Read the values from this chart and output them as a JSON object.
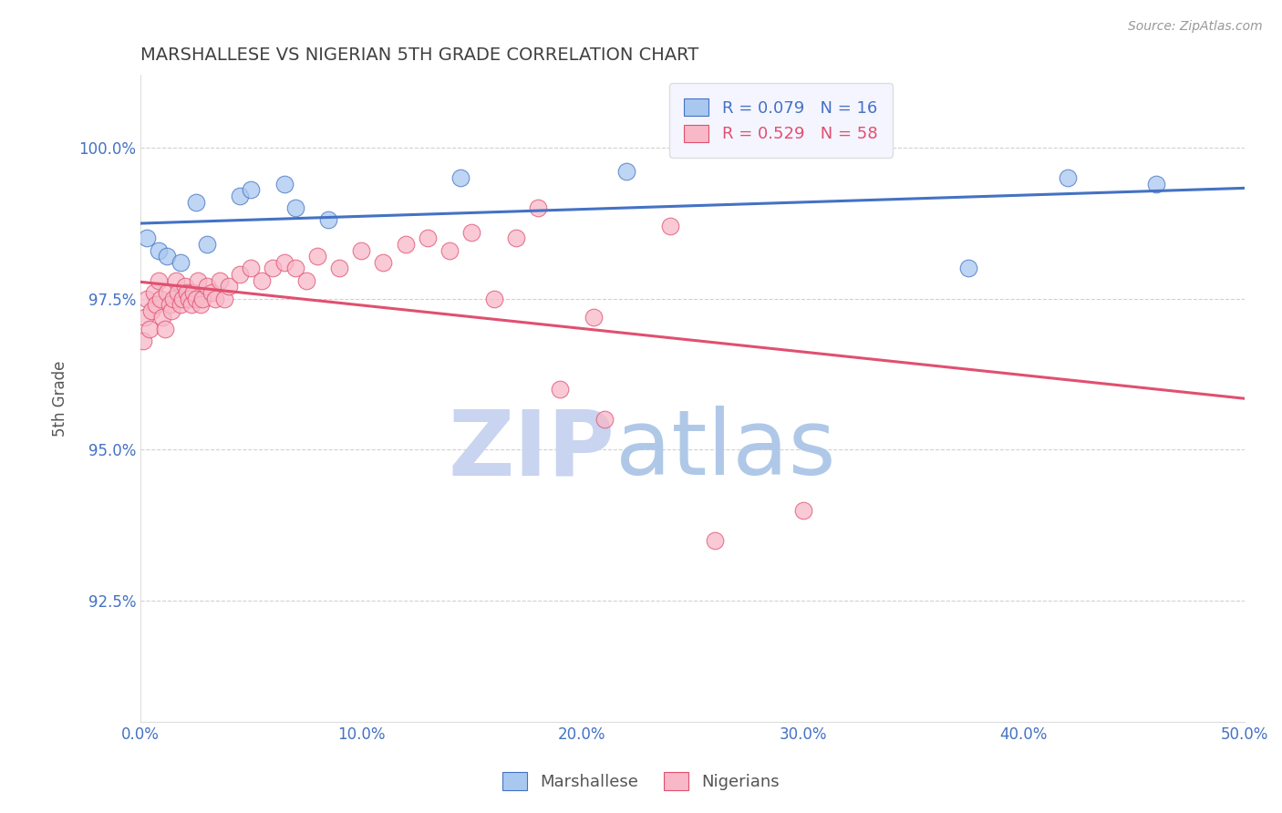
{
  "title": "MARSHALLESE VS NIGERIAN 5TH GRADE CORRELATION CHART",
  "source_text": "Source: ZipAtlas.com",
  "ylabel": "5th Grade",
  "xlim": [
    0.0,
    50.0
  ],
  "ylim": [
    90.5,
    101.2
  ],
  "yticks": [
    92.5,
    95.0,
    97.5,
    100.0
  ],
  "ytick_labels": [
    "92.5%",
    "95.0%",
    "97.5%",
    "100.0%"
  ],
  "xticks": [
    0.0,
    10.0,
    20.0,
    30.0,
    40.0,
    50.0
  ],
  "xtick_labels": [
    "0.0%",
    "10.0%",
    "20.0%",
    "30.0%",
    "40.0%",
    "50.0%"
  ],
  "marshallese_x": [
    0.3,
    0.8,
    1.2,
    1.8,
    2.5,
    3.0,
    4.5,
    5.0,
    6.5,
    7.0,
    8.5,
    14.5,
    22.0,
    37.5,
    42.0,
    46.0
  ],
  "marshallese_y": [
    98.5,
    98.3,
    98.2,
    98.1,
    99.1,
    98.4,
    99.2,
    99.3,
    99.4,
    99.0,
    98.8,
    99.5,
    99.6,
    98.0,
    99.5,
    99.4
  ],
  "nigerian_x": [
    0.1,
    0.2,
    0.3,
    0.4,
    0.5,
    0.6,
    0.7,
    0.8,
    0.9,
    1.0,
    1.1,
    1.2,
    1.3,
    1.4,
    1.5,
    1.6,
    1.7,
    1.8,
    1.9,
    2.0,
    2.1,
    2.2,
    2.3,
    2.4,
    2.5,
    2.6,
    2.7,
    2.8,
    3.0,
    3.2,
    3.4,
    3.6,
    3.8,
    4.0,
    4.5,
    5.0,
    5.5,
    6.0,
    6.5,
    7.0,
    7.5,
    8.0,
    9.0,
    10.0,
    11.0,
    12.0,
    13.0,
    14.0,
    15.0,
    16.0,
    17.0,
    18.0,
    19.0,
    20.5,
    21.0,
    24.0,
    26.0,
    30.0
  ],
  "nigerian_y": [
    96.8,
    97.2,
    97.5,
    97.0,
    97.3,
    97.6,
    97.4,
    97.8,
    97.5,
    97.2,
    97.0,
    97.6,
    97.4,
    97.3,
    97.5,
    97.8,
    97.6,
    97.4,
    97.5,
    97.7,
    97.6,
    97.5,
    97.4,
    97.6,
    97.5,
    97.8,
    97.4,
    97.5,
    97.7,
    97.6,
    97.5,
    97.8,
    97.5,
    97.7,
    97.9,
    98.0,
    97.8,
    98.0,
    98.1,
    98.0,
    97.8,
    98.2,
    98.0,
    98.3,
    98.1,
    98.4,
    98.5,
    98.3,
    98.6,
    97.5,
    98.5,
    99.0,
    96.0,
    97.2,
    95.5,
    98.7,
    93.5,
    94.0
  ],
  "marshallese_color": "#A8C8F0",
  "nigerian_color": "#F8B8C8",
  "marshallese_line_color": "#4472C4",
  "nigerian_line_color": "#E05070",
  "R_marshallese": 0.079,
  "N_marshallese": 16,
  "R_nigerian": 0.529,
  "N_nigerian": 58,
  "watermark_zip": "ZIP",
  "watermark_atlas": "atlas",
  "watermark_color_zip": "#C8D4F0",
  "watermark_color_atlas": "#B0C8E8",
  "legend_box_color": "#F5F5FF",
  "background_color": "#FFFFFF",
  "grid_color": "#CCCCCC",
  "title_color": "#404040",
  "axis_label_color": "#555555",
  "tick_label_color": "#4472C4",
  "source_color": "#999999"
}
